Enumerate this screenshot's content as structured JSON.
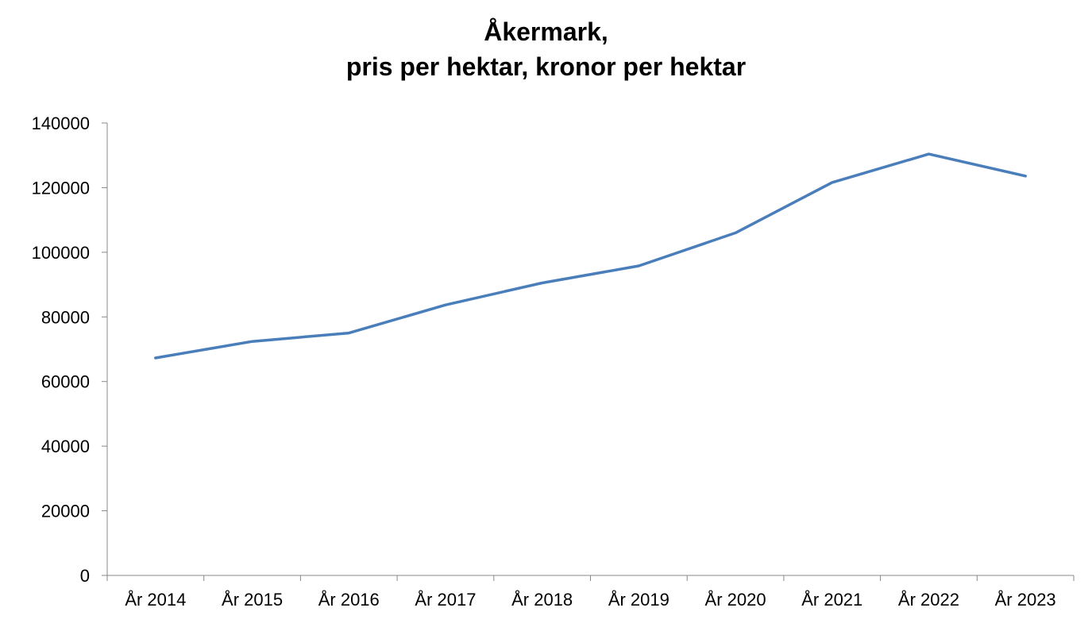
{
  "chart_data": {
    "type": "line",
    "title_line1": "Åkermark,",
    "title_line2": "pris per hektar, kronor per hektar",
    "xlabel": "",
    "ylabel": "",
    "categories": [
      "År 2014",
      "År 2015",
      "År 2016",
      "År 2017",
      "År 2018",
      "År 2019",
      "År 2020",
      "År 2021",
      "År 2022",
      "År 2023"
    ],
    "series": [
      {
        "values": [
          67300,
          72400,
          75000,
          83700,
          90500,
          95800,
          106000,
          121600,
          130400,
          123600
        ],
        "color": "#4a7ebb"
      }
    ],
    "ylim": [
      0,
      140000
    ],
    "yticks": [
      "0",
      "20000",
      "40000",
      "60000",
      "80000",
      "100000",
      "120000",
      "140000"
    ],
    "grid": false,
    "legend": "none",
    "axis_color": "#888888"
  }
}
